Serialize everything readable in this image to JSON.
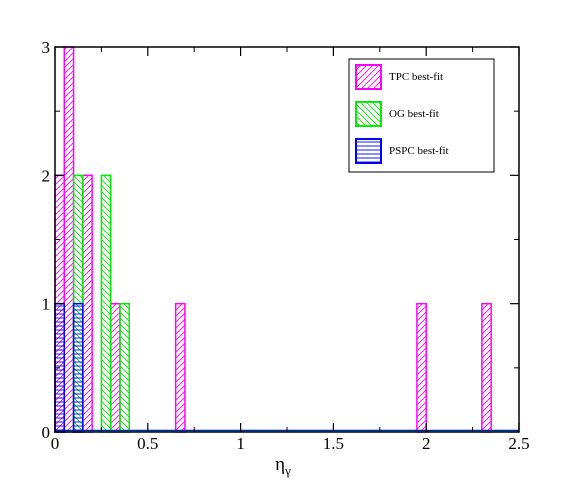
{
  "chart_data": {
    "type": "bar",
    "title": "",
    "xlabel": "η",
    "xlabel_subscript": "γ",
    "ylabel": "",
    "xlim": [
      0,
      2.5
    ],
    "ylim": [
      0,
      3
    ],
    "xticks": [
      "0",
      "0.5",
      "1",
      "1.5",
      "2",
      "2.5"
    ],
    "yticks": [
      "0",
      "1",
      "2",
      "3"
    ],
    "legend_position": "top-right",
    "bin_width": 0.05,
    "series": [
      {
        "name": "TPC best-fit",
        "color": "#ff00ff",
        "hatch": "diagonal-up",
        "bins": [
          {
            "x0": 0.0,
            "x1": 0.05,
            "count": 2
          },
          {
            "x0": 0.05,
            "x1": 0.1,
            "count": 3
          },
          {
            "x0": 0.15,
            "x1": 0.2,
            "count": 2
          },
          {
            "x0": 0.3,
            "x1": 0.35,
            "count": 1
          },
          {
            "x0": 0.65,
            "x1": 0.7,
            "count": 1
          },
          {
            "x0": 1.95,
            "x1": 2.0,
            "count": 1
          },
          {
            "x0": 2.3,
            "x1": 2.35,
            "count": 1
          }
        ]
      },
      {
        "name": "OG best-fit",
        "color": "#00ee00",
        "hatch": "diagonal-down",
        "bins": [
          {
            "x0": 0.1,
            "x1": 0.15,
            "count": 2
          },
          {
            "x0": 0.25,
            "x1": 0.3,
            "count": 2
          },
          {
            "x0": 0.35,
            "x1": 0.4,
            "count": 1
          }
        ]
      },
      {
        "name": "PSPC best-fit",
        "color": "#0000ff",
        "hatch": "horizontal",
        "bins": [
          {
            "x0": 0.0,
            "x1": 0.05,
            "count": 1
          },
          {
            "x0": 0.1,
            "x1": 0.15,
            "count": 1
          }
        ]
      }
    ]
  }
}
